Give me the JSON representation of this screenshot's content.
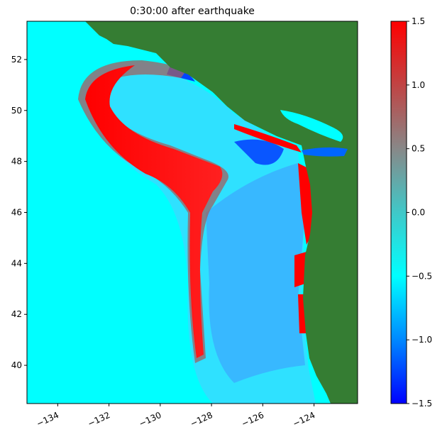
{
  "chart_data": {
    "type": "map",
    "title": "0:30:00 after earthquake",
    "xlim": [
      -135.2,
      -122.3
    ],
    "ylim": [
      38.5,
      53.5
    ],
    "xticks": [
      {
        "value": -134,
        "label": "−134"
      },
      {
        "value": -132,
        "label": "−132"
      },
      {
        "value": -130,
        "label": "−130"
      },
      {
        "value": -128,
        "label": "−128"
      },
      {
        "value": -126,
        "label": "−126"
      },
      {
        "value": -124,
        "label": "−124"
      }
    ],
    "yticks": [
      40,
      42,
      44,
      46,
      48,
      50,
      52
    ],
    "colorbar": {
      "lim": [
        -1.5,
        1.5
      ],
      "ticks": [
        {
          "value": -1.5,
          "label": "−1.5"
        },
        {
          "value": -1,
          "label": "−1.0"
        },
        {
          "value": -0.5,
          "label": "−0.5"
        },
        {
          "value": 0,
          "label": "0.0"
        },
        0.5,
        {
          "value": 1,
          "label": "1.0"
        },
        1.5
      ],
      "colors": [
        "#0000ff",
        "#0088ff",
        "#00ffff",
        "#40c8c8",
        "#888888",
        "#c04444",
        "#ff0000"
      ]
    }
  }
}
